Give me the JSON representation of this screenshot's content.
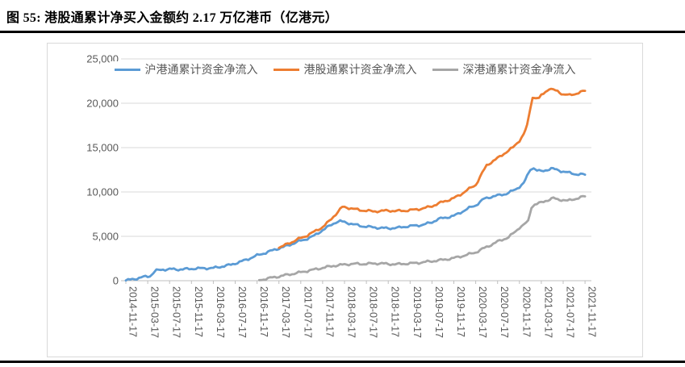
{
  "title": "图 55: 港股通累计净买入金额约 2.17 万亿港币（亿港元）",
  "chart_data": {
    "type": "line",
    "title": "港股通累计净买入金额约 2.17 万亿港币（亿港元）",
    "xlabel": "",
    "ylabel": "",
    "ylim": [
      0,
      25000
    ],
    "grid": "horizontal",
    "legend_position": "top",
    "y_ticks": [
      0,
      5000,
      10000,
      15000,
      20000,
      25000
    ],
    "y_tick_labels": [
      "0",
      "5,000",
      "10,000",
      "15,000",
      "20,000",
      "25,000"
    ],
    "x_tick_labels": [
      "2014-11-17",
      "2015-03-17",
      "2015-07-17",
      "2015-11-17",
      "2016-03-17",
      "2016-07-17",
      "2016-11-17",
      "2017-03-17",
      "2017-07-17",
      "2017-11-17",
      "2018-03-17",
      "2018-07-17",
      "2018-11-17",
      "2019-03-17",
      "2019-07-17",
      "2019-11-17",
      "2020-03-17",
      "2020-07-17",
      "2020-11-17",
      "2021-03-17",
      "2021-07-17",
      "2021-11-17"
    ],
    "x_unit": "tick_index_one_tick_per_4_months",
    "style": {
      "grid_color": "#d9d9d9",
      "axis_color": "#bfbfbf",
      "label_color": "#595959"
    },
    "series": [
      {
        "name": "沪港通累计资金净流入",
        "color": "#5b9bd5",
        "points": [
          [
            0,
            30
          ],
          [
            0.4,
            200
          ],
          [
            0.8,
            420
          ],
          [
            1.1,
            520
          ],
          [
            1.25,
            900
          ],
          [
            1.4,
            1150
          ],
          [
            1.7,
            1250
          ],
          [
            2,
            1300
          ],
          [
            2.4,
            1270
          ],
          [
            2.8,
            1310
          ],
          [
            3.2,
            1380
          ],
          [
            3.6,
            1400
          ],
          [
            4,
            1430
          ],
          [
            4.4,
            1600
          ],
          [
            4.8,
            1800
          ],
          [
            5.2,
            2100
          ],
          [
            5.6,
            2450
          ],
          [
            6,
            2850
          ],
          [
            6.4,
            3150
          ],
          [
            6.8,
            3500
          ],
          [
            7,
            3650
          ],
          [
            7.4,
            3950
          ],
          [
            7.8,
            4350
          ],
          [
            8.2,
            4650
          ],
          [
            8.6,
            5050
          ],
          [
            9,
            5700
          ],
          [
            9.3,
            6150
          ],
          [
            9.6,
            6600
          ],
          [
            9.8,
            6700
          ],
          [
            10,
            6600
          ],
          [
            10.4,
            6350
          ],
          [
            10.8,
            6150
          ],
          [
            11.2,
            6050
          ],
          [
            11.6,
            5950
          ],
          [
            12,
            5900
          ],
          [
            12.4,
            5950
          ],
          [
            12.8,
            6100
          ],
          [
            13.2,
            6200
          ],
          [
            13.6,
            6300
          ],
          [
            14,
            6600
          ],
          [
            14.3,
            6950
          ],
          [
            14.6,
            7100
          ],
          [
            15,
            7300
          ],
          [
            15.4,
            7800
          ],
          [
            15.7,
            8200
          ],
          [
            16,
            8500
          ],
          [
            16.4,
            9250
          ],
          [
            16.7,
            9450
          ],
          [
            17,
            9600
          ],
          [
            17.4,
            9800
          ],
          [
            17.8,
            10250
          ],
          [
            18,
            10600
          ],
          [
            18.2,
            11000
          ],
          [
            18.35,
            11800
          ],
          [
            18.5,
            12550
          ],
          [
            18.65,
            12700
          ],
          [
            18.8,
            12450
          ],
          [
            19,
            12300
          ],
          [
            19.2,
            12450
          ],
          [
            19.45,
            12650
          ],
          [
            19.7,
            12500
          ],
          [
            20,
            12300
          ],
          [
            20.3,
            12150
          ],
          [
            20.6,
            12000
          ],
          [
            21,
            11950
          ]
        ]
      },
      {
        "name": "港股通累计资金净流入",
        "color": "#ed7d31",
        "points": [
          [
            7,
            3700
          ],
          [
            7.4,
            4150
          ],
          [
            7.8,
            4600
          ],
          [
            8.2,
            5000
          ],
          [
            8.6,
            5500
          ],
          [
            9,
            6050
          ],
          [
            9.3,
            6700
          ],
          [
            9.6,
            7500
          ],
          [
            9.9,
            8300
          ],
          [
            10.1,
            8250
          ],
          [
            10.4,
            8100
          ],
          [
            10.7,
            7950
          ],
          [
            11,
            7900
          ],
          [
            11.3,
            7800
          ],
          [
            11.6,
            7850
          ],
          [
            12,
            7900
          ],
          [
            12.4,
            7850
          ],
          [
            12.8,
            7900
          ],
          [
            13.2,
            8000
          ],
          [
            13.6,
            8150
          ],
          [
            14,
            8400
          ],
          [
            14.4,
            8800
          ],
          [
            14.7,
            9050
          ],
          [
            15,
            9300
          ],
          [
            15.3,
            9700
          ],
          [
            15.6,
            10200
          ],
          [
            16,
            10800
          ],
          [
            16.2,
            11700
          ],
          [
            16.5,
            13000
          ],
          [
            16.8,
            13500
          ],
          [
            17,
            13800
          ],
          [
            17.4,
            14500
          ],
          [
            17.7,
            15000
          ],
          [
            18,
            15800
          ],
          [
            18.2,
            16500
          ],
          [
            18.35,
            17500
          ],
          [
            18.5,
            19500
          ],
          [
            18.6,
            20700
          ],
          [
            18.75,
            20600
          ],
          [
            18.9,
            20500
          ],
          [
            19,
            20900
          ],
          [
            19.2,
            21300
          ],
          [
            19.35,
            21650
          ],
          [
            19.55,
            21500
          ],
          [
            19.75,
            21350
          ],
          [
            20,
            21000
          ],
          [
            20.3,
            20900
          ],
          [
            20.6,
            21100
          ],
          [
            20.8,
            21250
          ],
          [
            21,
            21400
          ]
        ]
      },
      {
        "name": "深港通累计资金净流入",
        "color": "#a6a6a6",
        "points": [
          [
            6.1,
            60
          ],
          [
            6.5,
            260
          ],
          [
            7,
            480
          ],
          [
            7.5,
            720
          ],
          [
            8,
            950
          ],
          [
            8.5,
            1200
          ],
          [
            9,
            1450
          ],
          [
            9.5,
            1680
          ],
          [
            10,
            1820
          ],
          [
            10.4,
            1900
          ],
          [
            10.8,
            1880
          ],
          [
            11.2,
            1920
          ],
          [
            11.6,
            1960
          ],
          [
            12,
            1880
          ],
          [
            12.4,
            1850
          ],
          [
            12.8,
            1920
          ],
          [
            13.2,
            1980
          ],
          [
            13.6,
            2080
          ],
          [
            14,
            2200
          ],
          [
            14.5,
            2350
          ],
          [
            15,
            2550
          ],
          [
            15.5,
            2850
          ],
          [
            16,
            3200
          ],
          [
            16.5,
            3800
          ],
          [
            17,
            4400
          ],
          [
            17.5,
            4900
          ],
          [
            17.8,
            5500
          ],
          [
            18,
            6000
          ],
          [
            18.2,
            6300
          ],
          [
            18.4,
            6700
          ],
          [
            18.55,
            8300
          ],
          [
            18.7,
            8600
          ],
          [
            19,
            8800
          ],
          [
            19.3,
            9100
          ],
          [
            19.55,
            9300
          ],
          [
            19.75,
            9150
          ],
          [
            20,
            9100
          ],
          [
            20.2,
            9000
          ],
          [
            20.5,
            9200
          ],
          [
            20.8,
            9400
          ],
          [
            21,
            9500
          ]
        ]
      }
    ]
  }
}
